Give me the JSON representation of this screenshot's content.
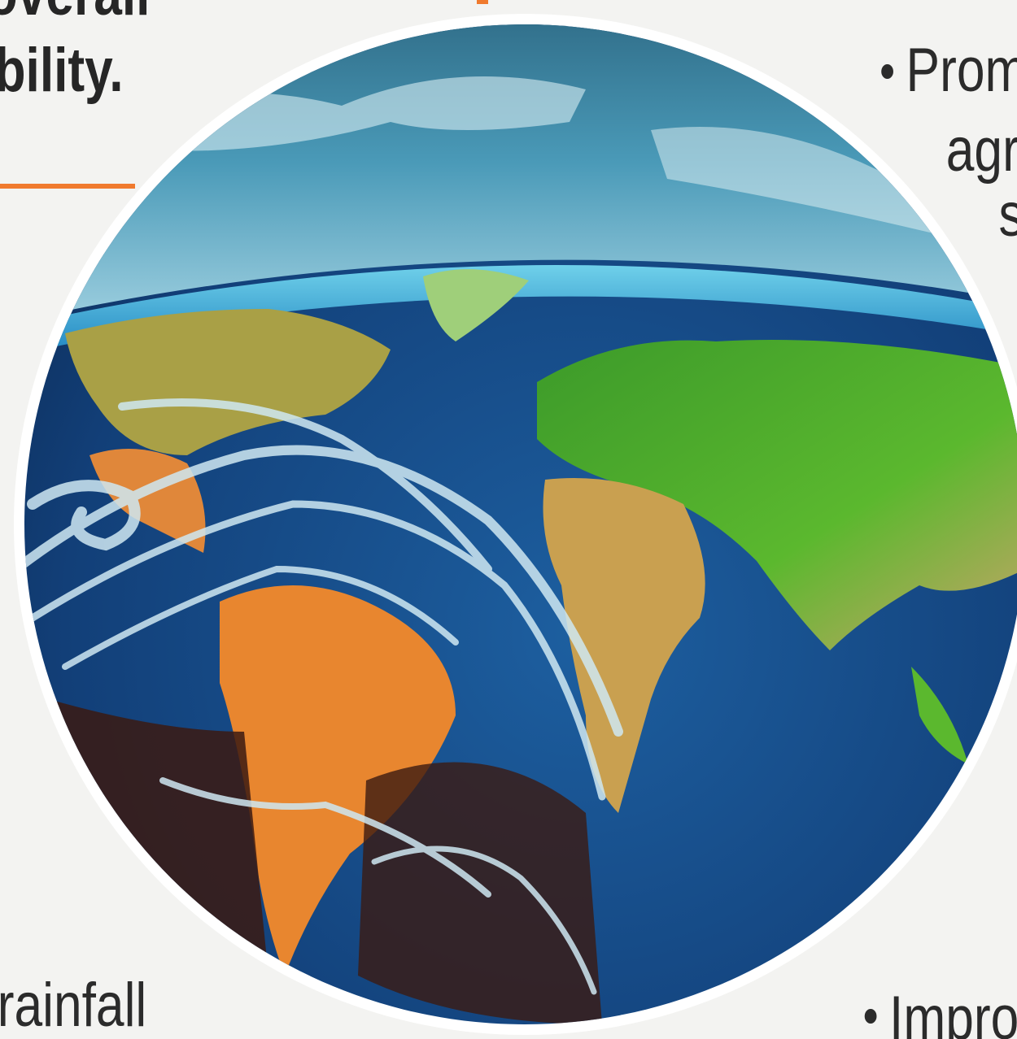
{
  "texts": {
    "heading_line1": "overall",
    "heading_line2": "bility.",
    "bullet1_line1": "Prom",
    "bullet1_line2": "agr",
    "bullet1_line3": "s",
    "left_bottom": "rainfall",
    "bullet2": "Impro"
  }
}
